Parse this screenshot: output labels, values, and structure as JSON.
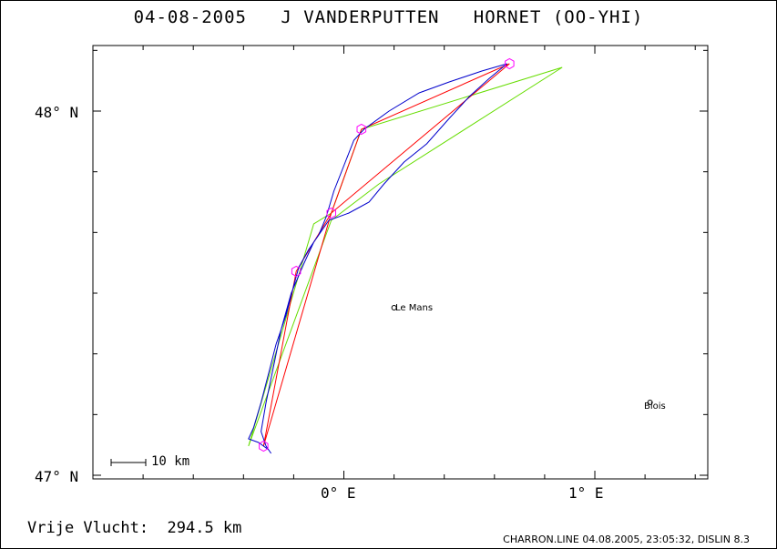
{
  "title": "04-08-2005   J VANDERPUTTEN   HORNET (OO-YHI)",
  "axes": {
    "lat_labels": [
      "48° N",
      "47° N"
    ],
    "lon_labels": [
      "0° E",
      "1° E"
    ]
  },
  "scale_bar": {
    "label": "10 km"
  },
  "cities": [
    {
      "name": "Le Mans",
      "lon": 0.2,
      "lat": 47.46
    },
    {
      "name": "Blois",
      "lon": 1.22,
      "lat": 47.2
    }
  ],
  "footer": {
    "distance_text": "Vrije Vlucht:  294.5 km",
    "software_text": "CHARRON.LINE 04.08.2005, 23:05:32, DISLIN 8.3"
  },
  "colors": {
    "track": "#0000cc",
    "declared_route": "#ff0000",
    "alt_route": "#66dd00",
    "turnpoint": "#ff00ff"
  },
  "map_data": {
    "bounds": {
      "lon_min": -1.0,
      "lon_max": 1.45,
      "lat_min": 46.99,
      "lat_max": 48.18
    },
    "turnpoints": [
      {
        "lon": -0.32,
        "lat": 47.08
      },
      {
        "lon": -0.19,
        "lat": 47.56
      },
      {
        "lon": -0.05,
        "lat": 47.72
      },
      {
        "lon": 0.07,
        "lat": 47.95
      },
      {
        "lon": 0.66,
        "lat": 48.13
      }
    ],
    "declared_route": [
      {
        "lon": -0.32,
        "lat": 47.08
      },
      {
        "lon": -0.19,
        "lat": 47.56
      },
      {
        "lon": -0.05,
        "lat": 47.72
      },
      {
        "lon": 0.07,
        "lat": 47.95
      },
      {
        "lon": 0.66,
        "lat": 48.13
      },
      {
        "lon": -0.05,
        "lat": 47.72
      },
      {
        "lon": -0.32,
        "lat": 47.08
      }
    ],
    "alt_route": [
      {
        "lon": -0.38,
        "lat": 47.08
      },
      {
        "lon": -0.12,
        "lat": 47.69
      },
      {
        "lon": -0.05,
        "lat": 47.72
      },
      {
        "lon": 0.07,
        "lat": 47.95
      },
      {
        "lon": 0.87,
        "lat": 48.12
      },
      {
        "lon": 0.14,
        "lat": 47.8
      },
      {
        "lon": -0.05,
        "lat": 47.7
      },
      {
        "lon": -0.38,
        "lat": 47.08
      }
    ],
    "track": [
      {
        "lon": -0.3,
        "lat": 47.07
      },
      {
        "lon": -0.34,
        "lat": 47.09
      },
      {
        "lon": -0.38,
        "lat": 47.1
      },
      {
        "lon": -0.36,
        "lat": 47.13
      },
      {
        "lon": -0.33,
        "lat": 47.2
      },
      {
        "lon": -0.3,
        "lat": 47.28
      },
      {
        "lon": -0.27,
        "lat": 47.36
      },
      {
        "lon": -0.23,
        "lat": 47.44
      },
      {
        "lon": -0.2,
        "lat": 47.52
      },
      {
        "lon": -0.18,
        "lat": 47.57
      },
      {
        "lon": -0.14,
        "lat": 47.62
      },
      {
        "lon": -0.1,
        "lat": 47.66
      },
      {
        "lon": -0.07,
        "lat": 47.71
      },
      {
        "lon": -0.04,
        "lat": 47.78
      },
      {
        "lon": 0.0,
        "lat": 47.85
      },
      {
        "lon": 0.04,
        "lat": 47.92
      },
      {
        "lon": 0.08,
        "lat": 47.95
      },
      {
        "lon": 0.18,
        "lat": 48.0
      },
      {
        "lon": 0.3,
        "lat": 48.05
      },
      {
        "lon": 0.42,
        "lat": 48.08
      },
      {
        "lon": 0.55,
        "lat": 48.11
      },
      {
        "lon": 0.65,
        "lat": 48.13
      },
      {
        "lon": 0.58,
        "lat": 48.09
      },
      {
        "lon": 0.5,
        "lat": 48.04
      },
      {
        "lon": 0.42,
        "lat": 47.98
      },
      {
        "lon": 0.33,
        "lat": 47.91
      },
      {
        "lon": 0.24,
        "lat": 47.86
      },
      {
        "lon": 0.16,
        "lat": 47.8
      },
      {
        "lon": 0.1,
        "lat": 47.75
      },
      {
        "lon": 0.02,
        "lat": 47.72
      },
      {
        "lon": -0.06,
        "lat": 47.7
      },
      {
        "lon": -0.12,
        "lat": 47.64
      },
      {
        "lon": -0.16,
        "lat": 47.58
      },
      {
        "lon": -0.21,
        "lat": 47.5
      },
      {
        "lon": -0.25,
        "lat": 47.4
      },
      {
        "lon": -0.28,
        "lat": 47.3
      },
      {
        "lon": -0.31,
        "lat": 47.2
      },
      {
        "lon": -0.33,
        "lat": 47.12
      },
      {
        "lon": -0.31,
        "lat": 47.08
      },
      {
        "lon": -0.29,
        "lat": 47.06
      }
    ]
  }
}
